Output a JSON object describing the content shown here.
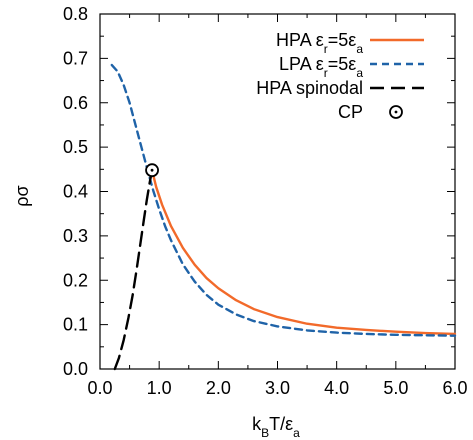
{
  "chart_data": {
    "type": "line",
    "xlabel": "k_BT/ε_a",
    "ylabel": "ρσ",
    "xlim": [
      0.0,
      6.0
    ],
    "ylim": [
      0.0,
      0.8
    ],
    "x_ticks": [
      "0.0",
      "1.0",
      "2.0",
      "3.0",
      "4.0",
      "5.0",
      "6.0"
    ],
    "y_ticks": [
      "0.0",
      "0.1",
      "0.2",
      "0.3",
      "0.4",
      "0.5",
      "0.6",
      "0.7",
      "0.8"
    ],
    "grid": false,
    "legend_position": "top-right",
    "series": [
      {
        "name": "HPA ε_r=5ε_a",
        "color": "#f26a2a",
        "style": "solid",
        "x": [
          0.88,
          0.95,
          1.05,
          1.2,
          1.4,
          1.6,
          1.8,
          2.0,
          2.3,
          2.6,
          3.0,
          3.5,
          4.0,
          4.5,
          5.0,
          5.5,
          6.0
        ],
        "y": [
          0.448,
          0.41,
          0.37,
          0.322,
          0.273,
          0.235,
          0.205,
          0.182,
          0.155,
          0.135,
          0.117,
          0.102,
          0.093,
          0.088,
          0.084,
          0.081,
          0.079
        ]
      },
      {
        "name": "LPA ε_r=5ε_a",
        "color": "#1f63a8",
        "style": "dashed",
        "x": [
          0.2,
          0.3,
          0.4,
          0.5,
          0.6,
          0.7,
          0.8,
          0.9,
          1.0,
          1.1,
          1.2,
          1.4,
          1.6,
          1.8,
          2.0,
          2.3,
          2.6,
          3.0,
          3.5,
          4.0,
          4.5,
          5.0,
          5.5,
          6.0
        ],
        "y": [
          0.685,
          0.67,
          0.64,
          0.6,
          0.55,
          0.5,
          0.45,
          0.402,
          0.36,
          0.322,
          0.29,
          0.236,
          0.197,
          0.167,
          0.145,
          0.123,
          0.108,
          0.096,
          0.087,
          0.082,
          0.079,
          0.077,
          0.076,
          0.075
        ]
      },
      {
        "name": "HPA spinodal",
        "color": "#000000",
        "style": "long-dash",
        "x": [
          0.25,
          0.32,
          0.4,
          0.48,
          0.55,
          0.62,
          0.68,
          0.74,
          0.79,
          0.84,
          0.88
        ],
        "y": [
          0.0,
          0.025,
          0.065,
          0.115,
          0.165,
          0.225,
          0.28,
          0.335,
          0.38,
          0.42,
          0.448
        ]
      }
    ],
    "points": [
      {
        "name": "CP",
        "marker": "circle-dot",
        "color": "#000000",
        "x": 0.88,
        "y": 0.448
      }
    ],
    "legend": {
      "entries": [
        {
          "label": "HPA εr=5εa",
          "label_main": "HPA ε",
          "sub1": "r",
          "mid": "=5ε",
          "sub2": "a"
        },
        {
          "label": "LPA εr=5εa",
          "label_main": "LPA ε",
          "sub1": "r",
          "mid": "=5ε",
          "sub2": "a"
        },
        {
          "label": "HPA spinodal",
          "label_main": "HPA spinodal"
        },
        {
          "label": "CP",
          "label_main": "CP"
        }
      ]
    },
    "axis_text": {
      "x_main": "k",
      "x_sub": "B",
      "x_mid": "T/ε",
      "x_sub2": "a",
      "y_main": "ρσ"
    }
  }
}
